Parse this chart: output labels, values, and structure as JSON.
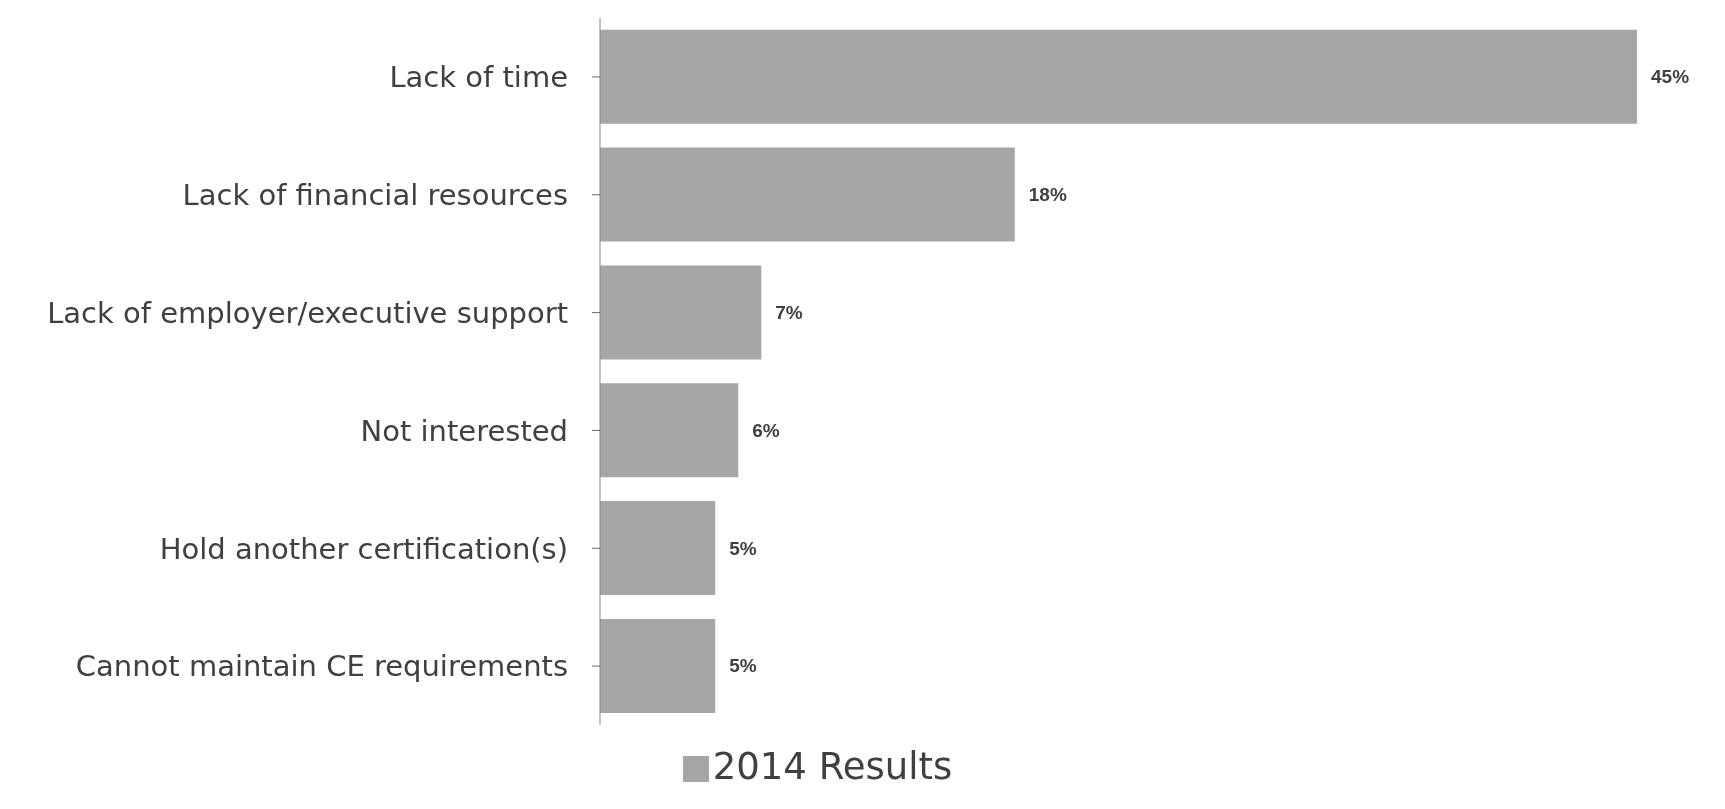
{
  "chart_data": {
    "type": "bar",
    "orientation": "horizontal",
    "categories": [
      "Lack of time",
      "Lack of financial resources",
      "Lack of employer/executive support",
      "Not interested",
      "Hold another certification(s)",
      "Cannot maintain CE requirements"
    ],
    "series": [
      {
        "name": "2014 Results",
        "color": "#a6a6a6",
        "values": [
          45,
          18,
          7,
          6,
          5,
          5
        ],
        "value_labels": [
          "45%",
          "18%",
          "7%",
          "6%",
          "5%",
          "5%"
        ]
      }
    ],
    "legend": "bottom",
    "grid": false
  }
}
